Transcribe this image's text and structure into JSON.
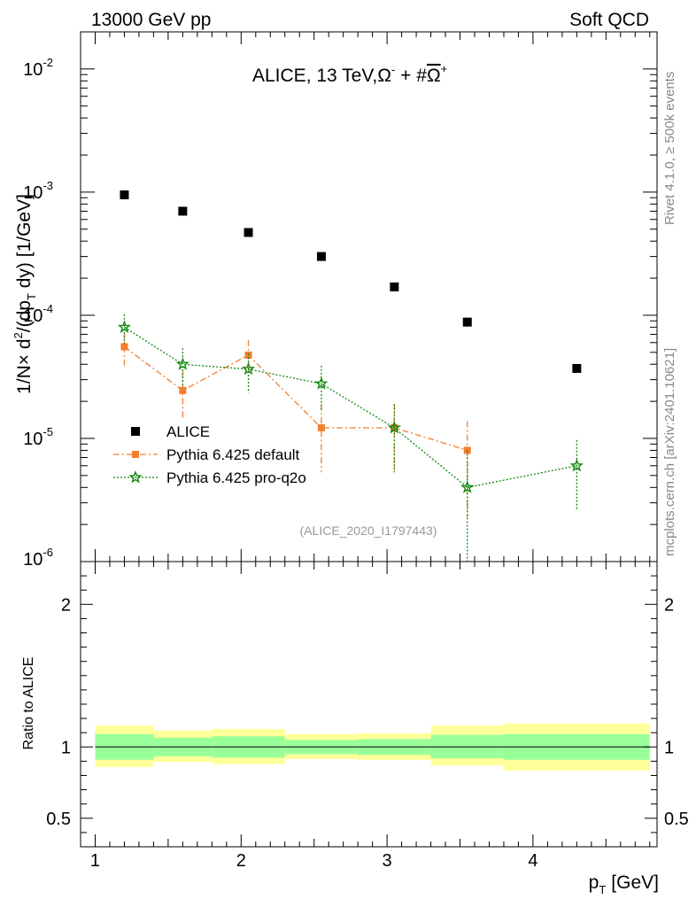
{
  "header": {
    "left": "13000 GeV pp",
    "right": "Soft QCD"
  },
  "side_labels": {
    "rivet": "Rivet 4.1.0, ≥ 500k events",
    "mcplots": "mcplots.cern.ch [arXiv:2401.10621]"
  },
  "chart_data": {
    "type": "scatter",
    "title": "ALICE, 13 TeV,Ω⁻ + #Ω̄⁺",
    "title_parts": {
      "main": "ALICE, 13 TeV,",
      "sym1": "Ω",
      "sup1": "-",
      "mid": " + #",
      "sym2": "Ω",
      "sup2": "+"
    },
    "analysis_id": "(ALICE_2020_I1797443)",
    "xlabel": "p",
    "xlabel_sub": "T",
    "xlabel_unit": "[GeV]",
    "ylabel": "1/N × d²/(dp_T dy) [1/GeV]",
    "ylabel_parts": {
      "a": "1/N",
      "times": "×",
      "b": " d",
      "sup": "2",
      "c": "/(dp",
      "sub": "T",
      "d": " dy) [1/GeV]"
    },
    "ratio_ylabel": "Ratio to ALICE",
    "xlim": [
      0.9,
      4.85
    ],
    "ylim_log": [
      1e-06,
      0.02
    ],
    "ratio_ylim": [
      0.3,
      2.3
    ],
    "x_ticks": [
      {
        "v": 1,
        "label": "1"
      },
      {
        "v": 2,
        "label": "2"
      },
      {
        "v": 3,
        "label": "3"
      },
      {
        "v": 4,
        "label": "4"
      }
    ],
    "y_ticks": [
      {
        "v": 0.01,
        "base": "10",
        "exp": "-2"
      },
      {
        "v": 0.001,
        "base": "10",
        "exp": "-3"
      },
      {
        "v": 0.0001,
        "base": "10",
        "exp": "-4"
      },
      {
        "v": 1e-05,
        "base": "10",
        "exp": "-5"
      },
      {
        "v": 1e-06,
        "base": "10",
        "exp": "-6"
      }
    ],
    "ratio_ticks": [
      {
        "v": 0.5,
        "label": "0.5"
      },
      {
        "v": 1,
        "label": "1"
      },
      {
        "v": 2,
        "label": "2"
      }
    ],
    "legend_position": "bottom-left",
    "series": [
      {
        "name": "ALICE",
        "color": "#000000",
        "marker": "square",
        "points": [
          {
            "x": 1.2,
            "y": 0.00095,
            "xlo": 1.0,
            "xhi": 1.4
          },
          {
            "x": 1.6,
            "y": 0.0007,
            "xlo": 1.4,
            "xhi": 1.8
          },
          {
            "x": 2.05,
            "y": 0.00047,
            "xlo": 1.8,
            "xhi": 2.3
          },
          {
            "x": 2.55,
            "y": 0.0003,
            "xlo": 2.3,
            "xhi": 2.8
          },
          {
            "x": 3.05,
            "y": 0.00017,
            "xlo": 2.8,
            "xhi": 3.3
          },
          {
            "x": 3.55,
            "y": 8.8e-05,
            "xlo": 3.3,
            "xhi": 3.8
          },
          {
            "x": 4.3,
            "y": 3.7e-05,
            "xlo": 3.8,
            "xhi": 4.8
          }
        ]
      },
      {
        "name": "Pythia 6.425 default",
        "color": "#f07f2f",
        "marker": "square",
        "dash": "7,3,2,3",
        "points": [
          {
            "x": 1.2,
            "y": 5.55e-05,
            "ylo": 3.9e-05,
            "yhi": 7.2e-05
          },
          {
            "x": 1.6,
            "y": 2.45e-05,
            "ylo": 1.45e-05,
            "yhi": 3.5e-05
          },
          {
            "x": 2.05,
            "y": 4.75e-05,
            "ylo": 3.4e-05,
            "yhi": 6.3e-05
          },
          {
            "x": 2.55,
            "y": 1.22e-05,
            "ylo": 5.3e-06,
            "yhi": 1.9e-05
          },
          {
            "x": 3.05,
            "y": 1.22e-05,
            "ylo": 5.3e-06,
            "yhi": 1.9e-05
          },
          {
            "x": 3.55,
            "y": 8e-06,
            "ylo": 2.3e-06,
            "yhi": 1.38e-05
          }
        ]
      },
      {
        "name": "Pythia 6.425 pro-q2o",
        "color": "#118811",
        "marker": "star",
        "dash": "2,2",
        "points": [
          {
            "x": 1.2,
            "y": 8e-05,
            "ylo": 5.9e-05,
            "yhi": 0.000102
          },
          {
            "x": 1.6,
            "y": 4e-05,
            "ylo": 2.7e-05,
            "yhi": 5.4e-05
          },
          {
            "x": 2.05,
            "y": 3.65e-05,
            "ylo": 2.35e-05,
            "yhi": 4.9e-05
          },
          {
            "x": 2.55,
            "y": 2.78e-05,
            "ylo": 1.7e-05,
            "yhi": 3.9e-05
          },
          {
            "x": 3.05,
            "y": 1.22e-05,
            "ylo": 5.3e-06,
            "yhi": 1.9e-05
          },
          {
            "x": 3.55,
            "y": 4e-06,
            "ylo": 9e-07,
            "yhi": 8e-06
          },
          {
            "x": 4.3,
            "y": 6e-06,
            "ylo": 2.6e-06,
            "yhi": 9.7e-06
          }
        ]
      }
    ],
    "ratio_bands": [
      {
        "xlo": 1.0,
        "xhi": 1.4,
        "inner": [
          0.91,
          1.09
        ],
        "outer": [
          0.86,
          1.15
        ]
      },
      {
        "xlo": 1.4,
        "xhi": 1.8,
        "inner": [
          0.935,
          1.065
        ],
        "outer": [
          0.895,
          1.115
        ]
      },
      {
        "xlo": 1.8,
        "xhi": 2.3,
        "inner": [
          0.925,
          1.075
        ],
        "outer": [
          0.88,
          1.125
        ]
      },
      {
        "xlo": 2.3,
        "xhi": 2.8,
        "inner": [
          0.95,
          1.05
        ],
        "outer": [
          0.915,
          1.09
        ]
      },
      {
        "xlo": 2.8,
        "xhi": 3.3,
        "inner": [
          0.945,
          1.055
        ],
        "outer": [
          0.91,
          1.095
        ]
      },
      {
        "xlo": 3.3,
        "xhi": 3.8,
        "inner": [
          0.92,
          1.085
        ],
        "outer": [
          0.87,
          1.15
        ]
      },
      {
        "xlo": 3.8,
        "xhi": 4.8,
        "inner": [
          0.91,
          1.09
        ],
        "outer": [
          0.835,
          1.165
        ]
      }
    ],
    "band_colors": {
      "inner": "#99ff99",
      "outer": "#ffff99"
    }
  }
}
